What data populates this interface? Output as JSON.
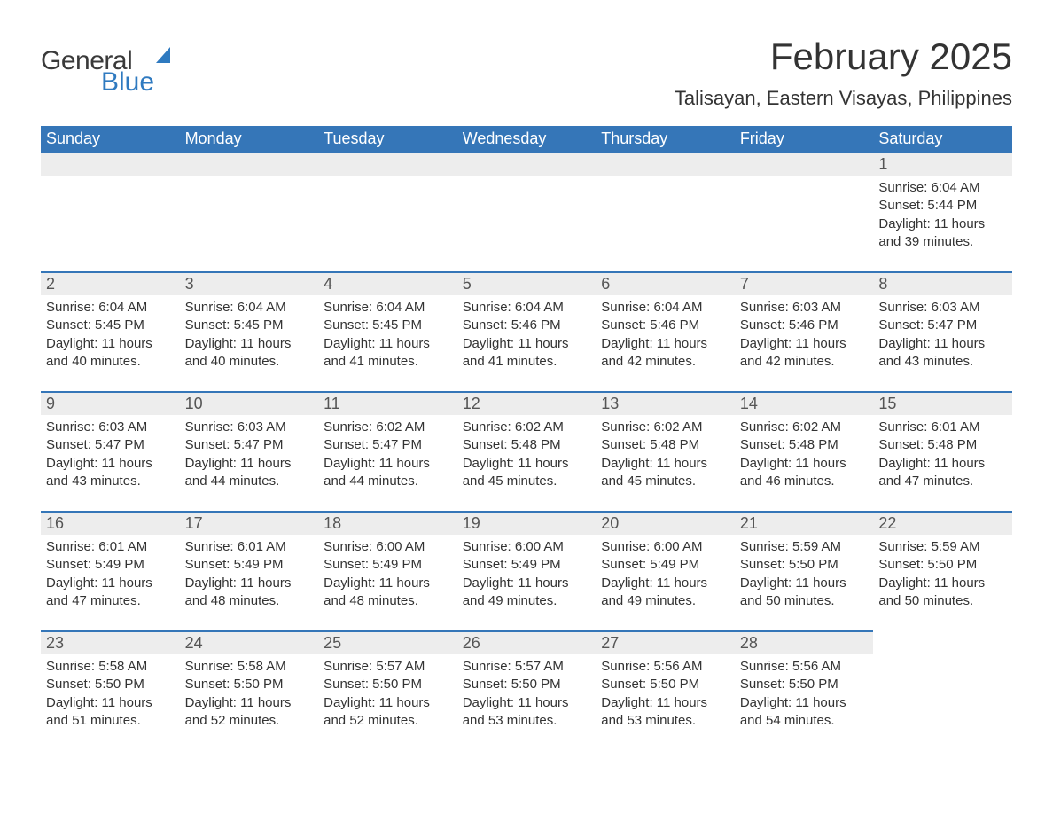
{
  "logo": {
    "text1": "General",
    "text2": "Blue",
    "flag_color": "#2f7ac0"
  },
  "title": "February 2025",
  "subtitle": "Talisayan, Eastern Visayas, Philippines",
  "colors": {
    "header_bg": "#3576b8",
    "header_text": "#ffffff",
    "daynum_bg": "#ededed",
    "row_border": "#3576b8",
    "body_text": "#333333",
    "logo_gray": "#3a3a3a",
    "logo_blue": "#2f7ac0"
  },
  "day_headers": [
    "Sunday",
    "Monday",
    "Tuesday",
    "Wednesday",
    "Thursday",
    "Friday",
    "Saturday"
  ],
  "weeks": [
    [
      null,
      null,
      null,
      null,
      null,
      null,
      {
        "n": "1",
        "sr": "6:04 AM",
        "ss": "5:44 PM",
        "dl": "11 hours and 39 minutes."
      }
    ],
    [
      {
        "n": "2",
        "sr": "6:04 AM",
        "ss": "5:45 PM",
        "dl": "11 hours and 40 minutes."
      },
      {
        "n": "3",
        "sr": "6:04 AM",
        "ss": "5:45 PM",
        "dl": "11 hours and 40 minutes."
      },
      {
        "n": "4",
        "sr": "6:04 AM",
        "ss": "5:45 PM",
        "dl": "11 hours and 41 minutes."
      },
      {
        "n": "5",
        "sr": "6:04 AM",
        "ss": "5:46 PM",
        "dl": "11 hours and 41 minutes."
      },
      {
        "n": "6",
        "sr": "6:04 AM",
        "ss": "5:46 PM",
        "dl": "11 hours and 42 minutes."
      },
      {
        "n": "7",
        "sr": "6:03 AM",
        "ss": "5:46 PM",
        "dl": "11 hours and 42 minutes."
      },
      {
        "n": "8",
        "sr": "6:03 AM",
        "ss": "5:47 PM",
        "dl": "11 hours and 43 minutes."
      }
    ],
    [
      {
        "n": "9",
        "sr": "6:03 AM",
        "ss": "5:47 PM",
        "dl": "11 hours and 43 minutes."
      },
      {
        "n": "10",
        "sr": "6:03 AM",
        "ss": "5:47 PM",
        "dl": "11 hours and 44 minutes."
      },
      {
        "n": "11",
        "sr": "6:02 AM",
        "ss": "5:47 PM",
        "dl": "11 hours and 44 minutes."
      },
      {
        "n": "12",
        "sr": "6:02 AM",
        "ss": "5:48 PM",
        "dl": "11 hours and 45 minutes."
      },
      {
        "n": "13",
        "sr": "6:02 AM",
        "ss": "5:48 PM",
        "dl": "11 hours and 45 minutes."
      },
      {
        "n": "14",
        "sr": "6:02 AM",
        "ss": "5:48 PM",
        "dl": "11 hours and 46 minutes."
      },
      {
        "n": "15",
        "sr": "6:01 AM",
        "ss": "5:48 PM",
        "dl": "11 hours and 47 minutes."
      }
    ],
    [
      {
        "n": "16",
        "sr": "6:01 AM",
        "ss": "5:49 PM",
        "dl": "11 hours and 47 minutes."
      },
      {
        "n": "17",
        "sr": "6:01 AM",
        "ss": "5:49 PM",
        "dl": "11 hours and 48 minutes."
      },
      {
        "n": "18",
        "sr": "6:00 AM",
        "ss": "5:49 PM",
        "dl": "11 hours and 48 minutes."
      },
      {
        "n": "19",
        "sr": "6:00 AM",
        "ss": "5:49 PM",
        "dl": "11 hours and 49 minutes."
      },
      {
        "n": "20",
        "sr": "6:00 AM",
        "ss": "5:49 PM",
        "dl": "11 hours and 49 minutes."
      },
      {
        "n": "21",
        "sr": "5:59 AM",
        "ss": "5:50 PM",
        "dl": "11 hours and 50 minutes."
      },
      {
        "n": "22",
        "sr": "5:59 AM",
        "ss": "5:50 PM",
        "dl": "11 hours and 50 minutes."
      }
    ],
    [
      {
        "n": "23",
        "sr": "5:58 AM",
        "ss": "5:50 PM",
        "dl": "11 hours and 51 minutes."
      },
      {
        "n": "24",
        "sr": "5:58 AM",
        "ss": "5:50 PM",
        "dl": "11 hours and 52 minutes."
      },
      {
        "n": "25",
        "sr": "5:57 AM",
        "ss": "5:50 PM",
        "dl": "11 hours and 52 minutes."
      },
      {
        "n": "26",
        "sr": "5:57 AM",
        "ss": "5:50 PM",
        "dl": "11 hours and 53 minutes."
      },
      {
        "n": "27",
        "sr": "5:56 AM",
        "ss": "5:50 PM",
        "dl": "11 hours and 53 minutes."
      },
      {
        "n": "28",
        "sr": "5:56 AM",
        "ss": "5:50 PM",
        "dl": "11 hours and 54 minutes."
      },
      null
    ]
  ],
  "labels": {
    "sunrise": "Sunrise:",
    "sunset": "Sunset:",
    "daylight": "Daylight:"
  }
}
